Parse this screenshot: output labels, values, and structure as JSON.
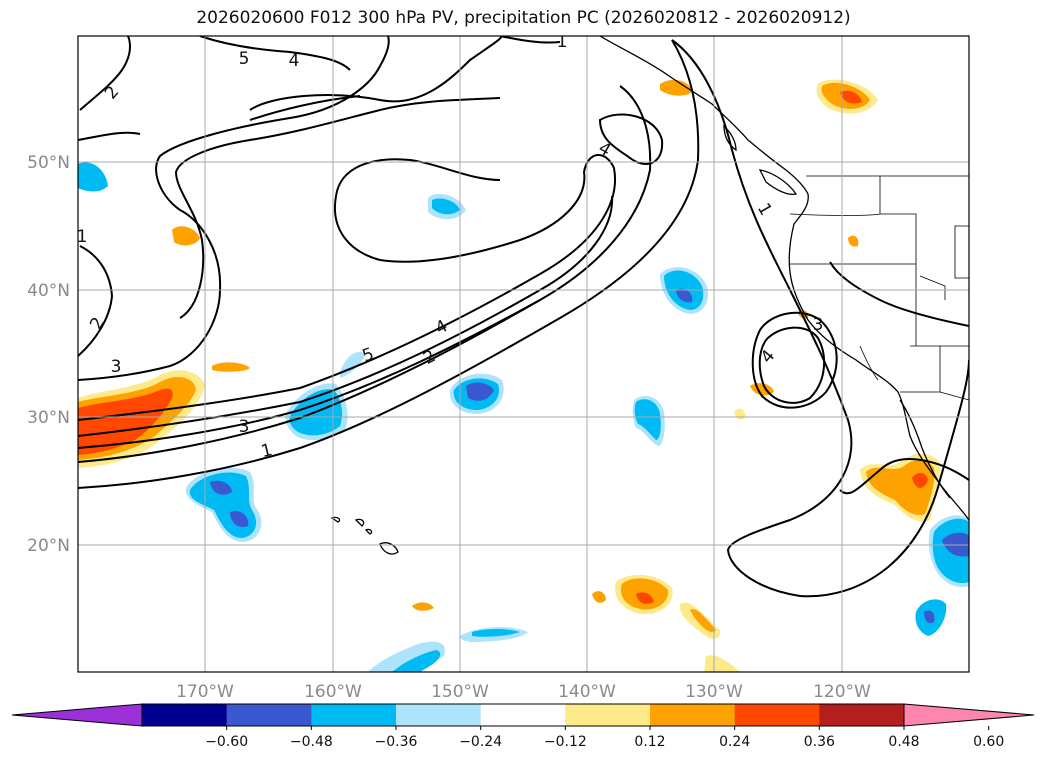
{
  "title": "2026020600 F012 300 hPa PV, precipitation PC (2026020812 - 2026020912)",
  "map": {
    "lat_labels": [
      "50°N",
      "40°N",
      "30°N",
      "20°N"
    ],
    "lon_labels": [
      "170°W",
      "160°W",
      "150°W",
      "140°W",
      "130°W",
      "120°W"
    ],
    "pv_contour_labels": [
      "1",
      "1",
      "1",
      "1",
      "2",
      "2",
      "2",
      "3",
      "3",
      "3",
      "4",
      "4",
      "4",
      "4",
      "5",
      "5"
    ]
  },
  "colorbar": {
    "tick_labels": [
      "−0.60",
      "−0.48",
      "−0.36",
      "−0.24",
      "−0.12",
      "0.12",
      "0.24",
      "0.36",
      "0.48",
      "0.60"
    ],
    "colors": [
      "#9b30d9",
      "#000090",
      "#3a58cf",
      "#00bbf3",
      "#ade3fb",
      "#ffffff",
      "#fee98b",
      "#fea200",
      "#ff4700",
      "#b31f1f",
      "#fe85ad"
    ]
  }
}
